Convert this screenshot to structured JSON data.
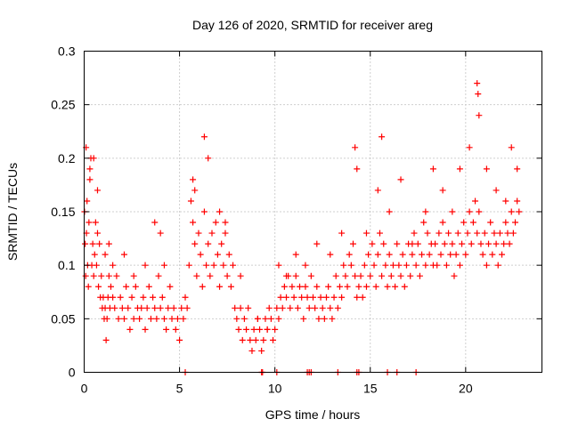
{
  "chart_data": {
    "type": "scatter",
    "title": "Day 126 of 2020, SRMTID for receiver areg",
    "xlabel": "GPS time / hours",
    "ylabel": "SRMTID / TECUs",
    "xlim": [
      0,
      24
    ],
    "ylim": [
      0,
      0.3
    ],
    "xticks": [
      0,
      5,
      10,
      15,
      20
    ],
    "xtick_labels": [
      "0",
      "5",
      "10",
      "15",
      "20"
    ],
    "yticks": [
      0,
      0.05,
      0.1,
      0.15,
      0.2,
      0.25,
      0.3
    ],
    "ytick_labels": [
      "0",
      "0.05",
      "0.1",
      "0.15",
      "0.2",
      "0.25",
      "0.3"
    ],
    "grid": true,
    "marker": "+",
    "color": "#ff0000",
    "series": [
      {
        "name": "SRMTID",
        "x": [
          0.02,
          0.05,
          0.08,
          0.12,
          0.15,
          0.18,
          0.22,
          0.25,
          0.3,
          0.35,
          0.4,
          0.45,
          0.5,
          0.55,
          0.6,
          0.65,
          0.7,
          0.75,
          0.8,
          0.85,
          0.9,
          0.95,
          1.0,
          1.05,
          1.1,
          1.15,
          1.2,
          1.25,
          1.3,
          1.35,
          1.4,
          1.5,
          1.6,
          1.7,
          1.8,
          1.9,
          2.0,
          2.1,
          2.2,
          2.3,
          2.4,
          2.5,
          2.6,
          2.7,
          2.8,
          2.9,
          3.0,
          3.1,
          3.2,
          3.3,
          3.4,
          3.5,
          3.6,
          3.7,
          3.8,
          3.9,
          4.0,
          4.1,
          4.2,
          4.3,
          4.4,
          4.5,
          4.6,
          4.7,
          4.8,
          4.9,
          5.0,
          5.1,
          5.2,
          5.3,
          5.4,
          5.5,
          5.6,
          5.7,
          5.8,
          5.9,
          6.0,
          6.1,
          6.2,
          6.3,
          6.4,
          6.5,
          6.6,
          6.7,
          6.8,
          6.9,
          7.0,
          7.1,
          7.2,
          7.3,
          7.4,
          7.5,
          7.6,
          7.7,
          7.8,
          7.9,
          8.0,
          8.1,
          8.2,
          8.3,
          8.4,
          8.5,
          8.6,
          8.7,
          8.8,
          8.9,
          9.0,
          9.1,
          9.2,
          9.3,
          9.4,
          9.5,
          9.6,
          9.7,
          9.8,
          9.9,
          10.0,
          10.1,
          10.2,
          10.3,
          10.4,
          10.5,
          10.6,
          10.7,
          10.8,
          10.9,
          11.0,
          11.1,
          11.2,
          11.3,
          11.4,
          11.5,
          11.6,
          11.7,
          11.8,
          11.9,
          12.0,
          12.1,
          12.2,
          12.3,
          12.4,
          12.5,
          12.6,
          12.7,
          12.8,
          12.9,
          13.0,
          13.1,
          13.2,
          13.3,
          13.4,
          13.5,
          13.6,
          13.7,
          13.8,
          13.9,
          14.0,
          14.1,
          14.2,
          14.3,
          14.4,
          14.5,
          14.6,
          14.7,
          14.8,
          14.9,
          15.0,
          15.1,
          15.2,
          15.3,
          15.4,
          15.5,
          15.6,
          15.7,
          15.8,
          15.9,
          16.0,
          16.1,
          16.2,
          16.3,
          16.4,
          16.5,
          16.6,
          16.7,
          16.8,
          16.9,
          17.0,
          17.1,
          17.2,
          17.3,
          17.4,
          17.5,
          17.6,
          17.7,
          17.8,
          17.9,
          18.0,
          18.1,
          18.2,
          18.3,
          18.4,
          18.5,
          18.6,
          18.7,
          18.8,
          18.9,
          19.0,
          19.1,
          19.2,
          19.3,
          19.4,
          19.5,
          19.6,
          19.7,
          19.8,
          19.9,
          20.0,
          20.1,
          20.2,
          20.3,
          20.4,
          20.5,
          20.6,
          20.7,
          20.8,
          20.9,
          21.0,
          21.1,
          21.2,
          21.3,
          21.4,
          21.5,
          21.6,
          21.7,
          21.8,
          21.9,
          22.0,
          22.1,
          22.2,
          22.3,
          22.4,
          22.5,
          22.6,
          22.7,
          22.8,
          0.1,
          0.3,
          0.5,
          0.7,
          1.1,
          1.3,
          1.5,
          2.1,
          2.6,
          3.2,
          3.7,
          4.0,
          4.2,
          5.7,
          5.8,
          6.3,
          6.5,
          7.1,
          7.4,
          8.2,
          9.1,
          9.6,
          10.2,
          10.6,
          11.1,
          11.6,
          12.2,
          12.9,
          13.5,
          14.2,
          14.3,
          14.8,
          15.4,
          15.6,
          16.0,
          16.6,
          17.2,
          17.9,
          18.3,
          18.8,
          19.3,
          19.7,
          20.2,
          20.6,
          20.65,
          20.7,
          21.1,
          21.6,
          22.1,
          22.4,
          22.7,
          5.3,
          9.3,
          9.35,
          10.1,
          11.7,
          11.8,
          11.9,
          13.3,
          14.3,
          14.4,
          15.9,
          16.4,
          17.4
        ],
        "y": [
          0.15,
          0.12,
          0.09,
          0.13,
          0.16,
          0.1,
          0.08,
          0.14,
          0.18,
          0.2,
          0.1,
          0.12,
          0.09,
          0.11,
          0.14,
          0.1,
          0.13,
          0.08,
          0.12,
          0.07,
          0.09,
          0.06,
          0.07,
          0.05,
          0.06,
          0.03,
          0.05,
          0.07,
          0.09,
          0.06,
          0.08,
          0.07,
          0.06,
          0.09,
          0.05,
          0.07,
          0.06,
          0.05,
          0.08,
          0.06,
          0.04,
          0.07,
          0.05,
          0.08,
          0.06,
          0.05,
          0.06,
          0.07,
          0.04,
          0.06,
          0.08,
          0.05,
          0.07,
          0.06,
          0.05,
          0.09,
          0.06,
          0.07,
          0.05,
          0.04,
          0.06,
          0.08,
          0.05,
          0.06,
          0.04,
          0.05,
          0.03,
          0.06,
          0.05,
          0.07,
          0.06,
          0.1,
          0.16,
          0.14,
          0.12,
          0.09,
          0.13,
          0.11,
          0.08,
          0.15,
          0.1,
          0.12,
          0.09,
          0.13,
          0.1,
          0.14,
          0.11,
          0.08,
          0.12,
          0.1,
          0.13,
          0.09,
          0.11,
          0.08,
          0.1,
          0.06,
          0.05,
          0.04,
          0.06,
          0.03,
          0.05,
          0.04,
          0.06,
          0.03,
          0.02,
          0.04,
          0.03,
          0.05,
          0.04,
          0.02,
          0.03,
          0.05,
          0.04,
          0.06,
          0.05,
          0.03,
          0.04,
          0.06,
          0.05,
          0.07,
          0.06,
          0.08,
          0.07,
          0.09,
          0.06,
          0.08,
          0.07,
          0.09,
          0.06,
          0.08,
          0.07,
          0.05,
          0.08,
          0.07,
          0.06,
          0.09,
          0.07,
          0.06,
          0.08,
          0.05,
          0.07,
          0.06,
          0.05,
          0.07,
          0.08,
          0.06,
          0.05,
          0.07,
          0.09,
          0.06,
          0.08,
          0.07,
          0.1,
          0.09,
          0.08,
          0.11,
          0.1,
          0.12,
          0.09,
          0.07,
          0.08,
          0.09,
          0.07,
          0.1,
          0.08,
          0.11,
          0.09,
          0.12,
          0.1,
          0.08,
          0.11,
          0.13,
          0.09,
          0.12,
          0.1,
          0.08,
          0.11,
          0.09,
          0.1,
          0.08,
          0.12,
          0.1,
          0.09,
          0.11,
          0.08,
          0.1,
          0.12,
          0.09,
          0.11,
          0.13,
          0.1,
          0.12,
          0.09,
          0.11,
          0.14,
          0.1,
          0.13,
          0.11,
          0.12,
          0.1,
          0.12,
          0.1,
          0.13,
          0.11,
          0.14,
          0.12,
          0.1,
          0.13,
          0.11,
          0.12,
          0.09,
          0.11,
          0.13,
          0.1,
          0.12,
          0.14,
          0.11,
          0.13,
          0.15,
          0.12,
          0.14,
          0.16,
          0.13,
          0.15,
          0.12,
          0.11,
          0.13,
          0.1,
          0.12,
          0.14,
          0.11,
          0.13,
          0.12,
          0.1,
          0.13,
          0.11,
          0.12,
          0.14,
          0.13,
          0.12,
          0.15,
          0.13,
          0.14,
          0.16,
          0.15,
          0.21,
          0.19,
          0.2,
          0.17,
          0.11,
          0.12,
          0.1,
          0.11,
          0.09,
          0.1,
          0.14,
          0.13,
          0.1,
          0.18,
          0.17,
          0.22,
          0.2,
          0.15,
          0.14,
          0.09,
          0.05,
          0.04,
          0.1,
          0.09,
          0.11,
          0.1,
          0.12,
          0.11,
          0.13,
          0.21,
          0.19,
          0.13,
          0.17,
          0.22,
          0.15,
          0.18,
          0.12,
          0.15,
          0.19,
          0.17,
          0.15,
          0.19,
          0.21,
          0.27,
          0.26,
          0.24,
          0.19,
          0.17,
          0.16,
          0.21,
          0.19,
          0.0,
          0.0,
          0.0,
          0.0,
          0.0,
          0.0,
          0.0,
          0.0,
          0.0,
          0.0,
          0.0,
          0.0,
          0.0
        ]
      }
    ]
  }
}
